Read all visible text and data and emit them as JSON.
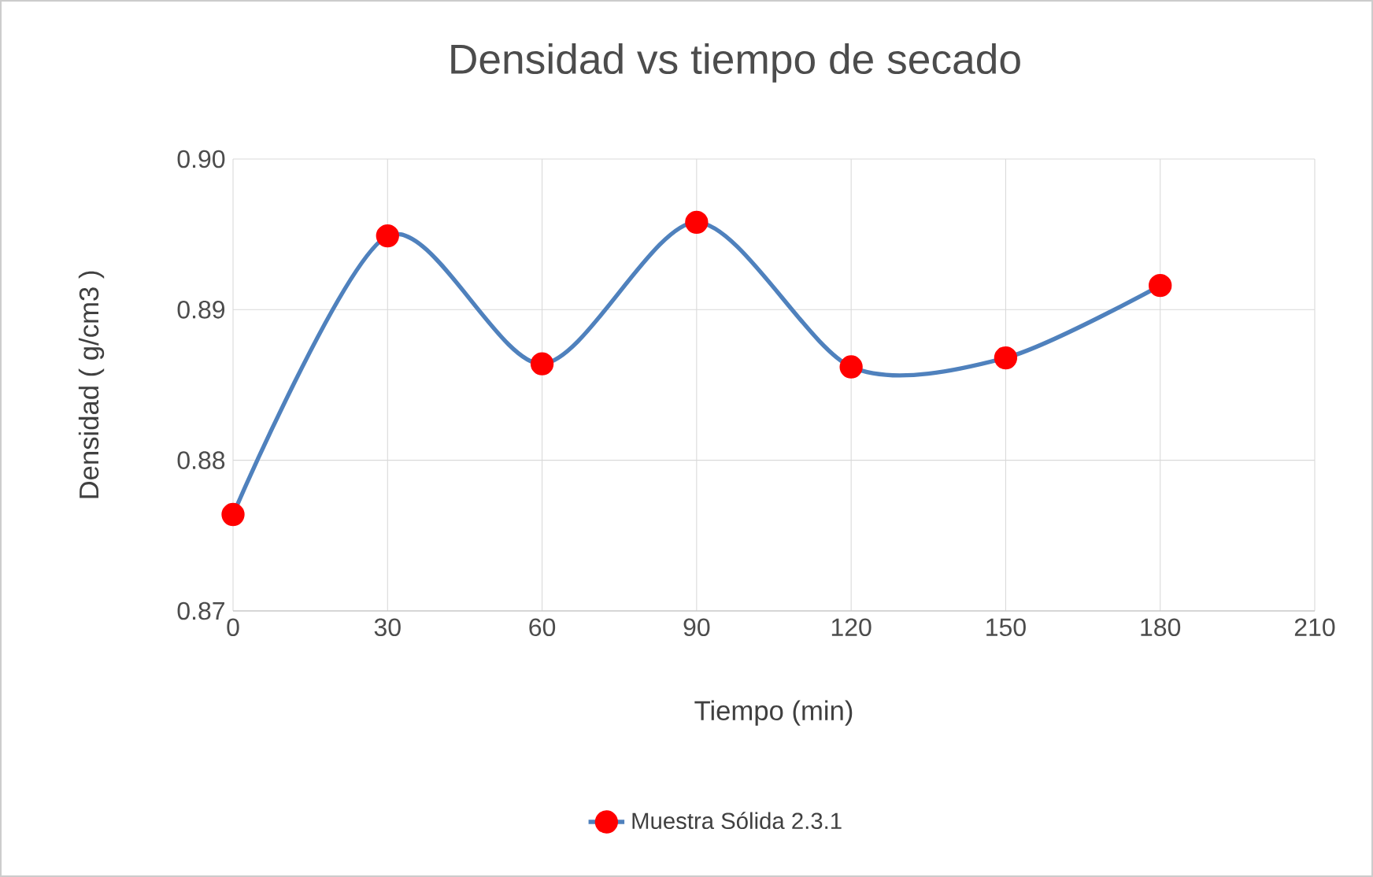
{
  "chart_data": {
    "type": "line",
    "title": "Densidad vs tiempo de secado",
    "xlabel": "Tiempo (min)",
    "ylabel": "Densidad ( g/cm3 )",
    "x": [
      0,
      30,
      60,
      90,
      120,
      150,
      180
    ],
    "series": [
      {
        "name": "Muestra Sólida 2.3.1",
        "color": "#4f81bd",
        "values": [
          0.8764,
          0.8949,
          0.8864,
          0.8958,
          0.8862,
          0.8868,
          0.8916
        ]
      }
    ],
    "xlim": [
      0,
      210
    ],
    "xticks": [
      0,
      30,
      60,
      90,
      120,
      150,
      180,
      210
    ],
    "ylim": [
      0.87,
      0.9
    ],
    "yticks": [
      0.87,
      0.88,
      0.89,
      {
        "value": 0.9,
        "label": "0.90"
      }
    ],
    "grid": true,
    "legend": "bottom",
    "marker": "circle",
    "line_style": "solid"
  }
}
